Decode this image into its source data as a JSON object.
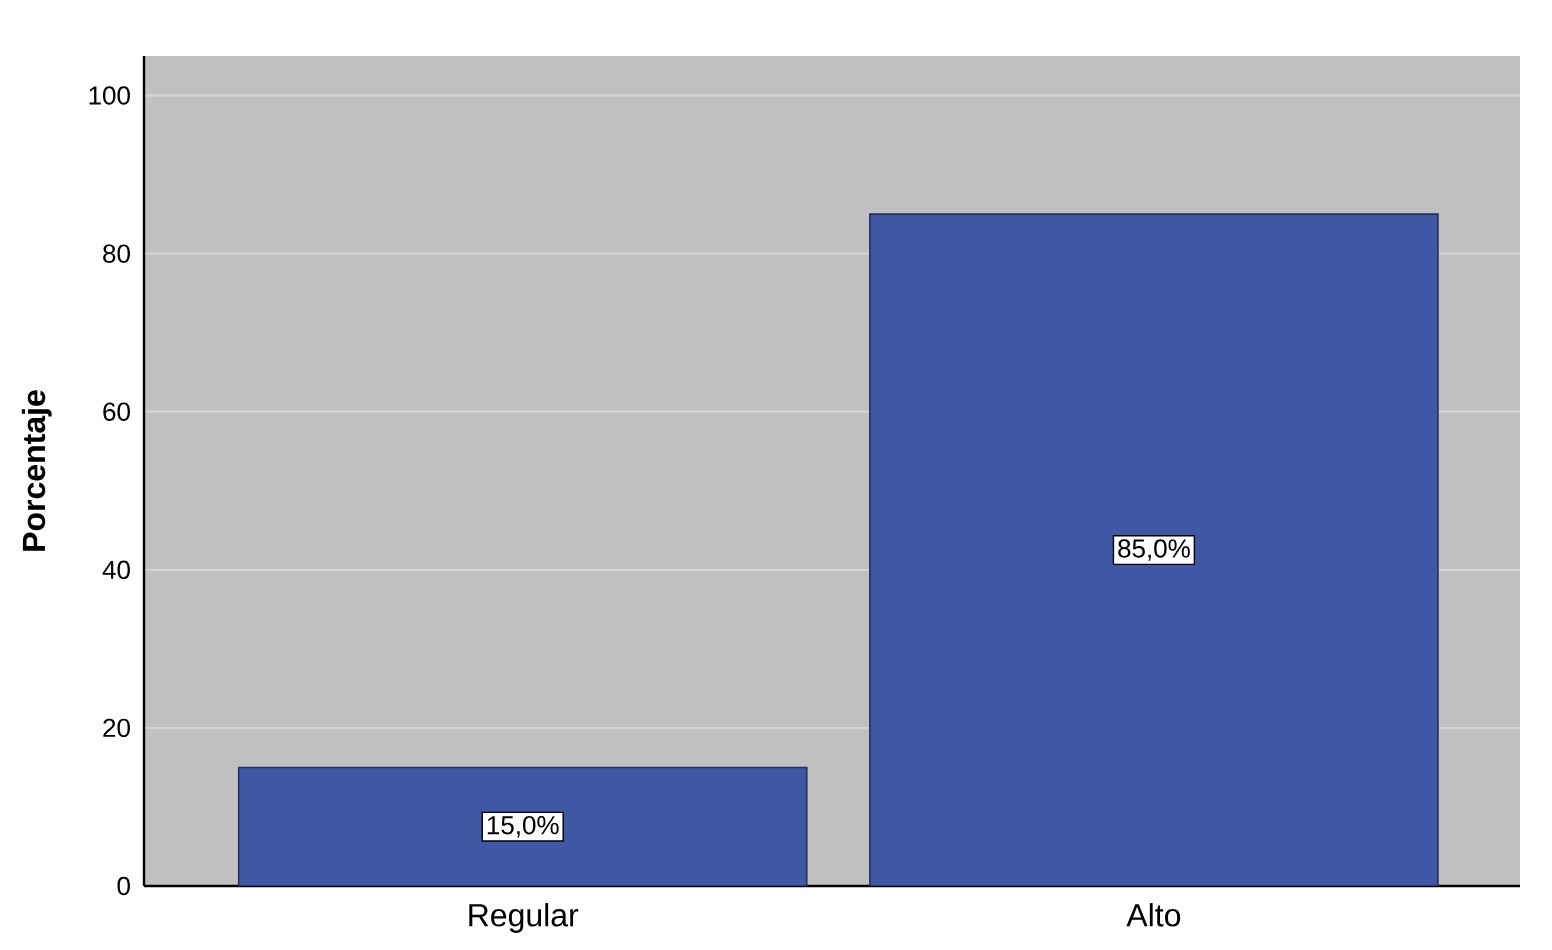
{
  "chart_data": {
    "type": "bar",
    "categories": [
      "Regular",
      "Alto"
    ],
    "values": [
      15,
      85
    ],
    "color": "#3f58a6",
    "ylabel": "Porcentaje",
    "ylim": [
      0,
      105
    ],
    "yticks": [
      0,
      20,
      40,
      60,
      80,
      100
    ],
    "grid": "y",
    "value_labels": [
      "15,0%",
      "85,0%"
    ]
  }
}
